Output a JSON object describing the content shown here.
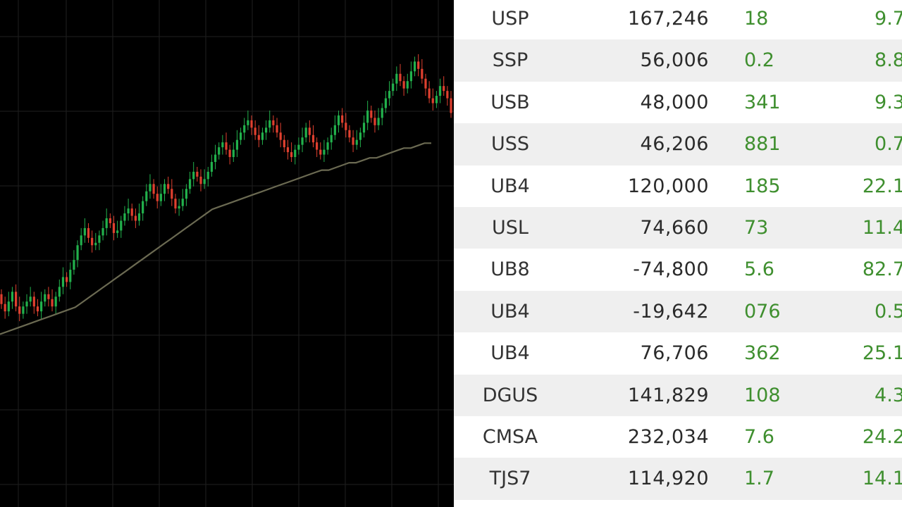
{
  "colors": {
    "background": "#000000",
    "grid": "#1f1f1f",
    "up_candle": "#22b14c",
    "down_candle": "#e0402f",
    "moving_average": "#6b6a52",
    "table_text": "#2a2a2a",
    "positive_text": "#3f8f2f"
  },
  "chart_data": {
    "type": "candlestick",
    "grid": true,
    "series": [
      {
        "kind": "candles",
        "open": [
          65,
          61,
          58,
          62,
          66,
          60,
          57,
          60,
          62,
          64,
          60,
          58,
          62,
          65,
          63,
          60,
          64,
          68,
          72,
          70,
          75,
          79,
          85,
          89,
          92,
          88,
          85,
          86,
          89,
          92,
          96,
          94,
          90,
          91,
          95,
          98,
          100,
          97,
          95,
          98,
          103,
          107,
          110,
          106,
          103,
          106,
          110,
          108,
          104,
          100,
          101,
          104,
          108,
          112,
          115,
          113,
          110,
          112,
          115,
          119,
          122,
          125,
          127,
          124,
          121,
          124,
          128,
          131,
          134,
          136,
          133,
          130,
          128,
          131,
          133,
          136,
          134,
          131,
          128,
          125,
          123,
          121,
          124,
          126,
          129,
          133,
          130,
          127,
          124,
          122,
          124,
          127,
          130,
          134,
          138,
          135,
          132,
          129,
          126,
          128,
          131,
          135,
          140,
          137,
          134,
          137,
          141,
          145,
          148,
          151,
          155,
          152,
          149,
          152,
          156,
          160,
          157,
          153,
          149,
          145,
          143,
          146,
          150,
          148,
          145
        ]
      },
      {
        "kind": "moving_average",
        "values": [
          55,
          56,
          57,
          58,
          59,
          60,
          61,
          62,
          63,
          64,
          65,
          66,
          68,
          70,
          72,
          74,
          76,
          78,
          80,
          82,
          84,
          86,
          88,
          90,
          92,
          94,
          96,
          98,
          100,
          102,
          104,
          106,
          107,
          108,
          109,
          110,
          111,
          112,
          113,
          114,
          115,
          116,
          117,
          118,
          119,
          120,
          121,
          122,
          122,
          123,
          124,
          125,
          125,
          126,
          127,
          127,
          128,
          129,
          130,
          131,
          131,
          132,
          133,
          133
        ]
      }
    ]
  },
  "table": {
    "rows": [
      {
        "symbol": "USP",
        "value": "167,246",
        "change": "18",
        "percent": "9.7"
      },
      {
        "symbol": "SSP",
        "value": "56,006",
        "change": "0.2",
        "percent": "8.8"
      },
      {
        "symbol": "USB",
        "value": "48,000",
        "change": "341",
        "percent": "9.3"
      },
      {
        "symbol": "USS",
        "value": "46,206",
        "change": "881",
        "percent": "0.7"
      },
      {
        "symbol": "UB4",
        "value": "120,000",
        "change": "185",
        "percent": "22.1"
      },
      {
        "symbol": "USL",
        "value": "74,660",
        "change": "73",
        "percent": "11.4"
      },
      {
        "symbol": "UB8",
        "value": "-74,800",
        "change": "5.6",
        "percent": "82.7"
      },
      {
        "symbol": "UB4",
        "value": "-19,642",
        "change": "076",
        "percent": "0.5"
      },
      {
        "symbol": "UB4",
        "value": "76,706",
        "change": "362",
        "percent": "25.1"
      },
      {
        "symbol": "DGUS",
        "value": "141,829",
        "change": "108",
        "percent": "4.3"
      },
      {
        "symbol": "CMSA",
        "value": "232,034",
        "change": "7.6",
        "percent": "24.2"
      },
      {
        "symbol": "TJS7",
        "value": "114,920",
        "change": "1.7",
        "percent": "14.1"
      }
    ]
  }
}
